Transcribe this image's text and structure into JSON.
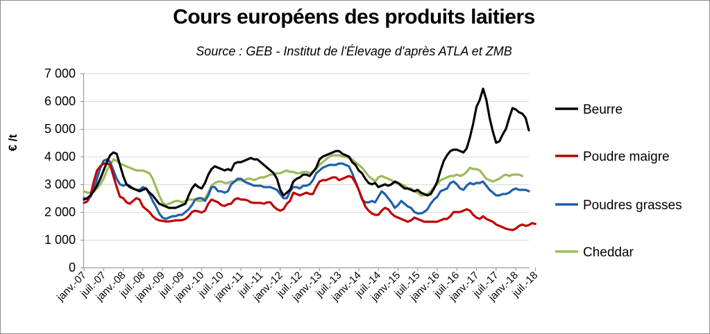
{
  "chart_data": {
    "type": "line",
    "title": "Cours européens des produits laitiers",
    "subtitle": "Source : GEB - Institut de l'Élevage d'après ATLA et ZMB",
    "xlabel": "",
    "ylabel": "€ /t",
    "ylim": [
      0,
      7000
    ],
    "yticks": [
      0,
      1000,
      2000,
      3000,
      4000,
      5000,
      6000,
      7000
    ],
    "ytick_labels": [
      "0",
      "1 000",
      "2 000",
      "3 000",
      "4 000",
      "5 000",
      "6 000",
      "7 000"
    ],
    "x_unit": "month",
    "x_start": "2007-01",
    "x_ticks": [
      "janv.-07",
      "juil.-07",
      "janv.-08",
      "juil.-08",
      "janv.-09",
      "juil.-09",
      "janv.-10",
      "juil.-10",
      "janv.-11",
      "juil.-11",
      "janv.-12",
      "juil.-12",
      "janv.-13",
      "juil.-13",
      "janv.-14",
      "juil.-14",
      "janv.-15",
      "juil.-15",
      "janv.-16",
      "juil.-16",
      "janv.-17",
      "juil.-17",
      "janv.-18",
      "juil.-18"
    ],
    "grid": "horizontal",
    "legend_position": "right",
    "series": [
      {
        "name": "Beurre",
        "color": "#000000",
        "values": [
          2450,
          2500,
          2600,
          2750,
          2950,
          3200,
          3500,
          3800,
          4050,
          4150,
          4100,
          3700,
          3300,
          3000,
          2900,
          2850,
          2800,
          2750,
          2800,
          2850,
          2700,
          2600,
          2450,
          2300,
          2250,
          2200,
          2150,
          2150,
          2150,
          2200,
          2250,
          2300,
          2600,
          2850,
          3000,
          2900,
          2850,
          3050,
          3350,
          3550,
          3650,
          3600,
          3550,
          3500,
          3550,
          3500,
          3750,
          3800,
          3800,
          3850,
          3900,
          3950,
          3900,
          3900,
          3800,
          3700,
          3600,
          3500,
          3400,
          3200,
          2800,
          2600,
          2700,
          2800,
          3100,
          3200,
          3250,
          3350,
          3350,
          3300,
          3450,
          3600,
          3900,
          4000,
          4050,
          4100,
          4150,
          4200,
          4200,
          4100,
          4050,
          4000,
          3800,
          3700,
          3500,
          3400,
          3200,
          3050,
          3000,
          3050,
          2900,
          2950,
          3000,
          2950,
          3000,
          3100,
          3050,
          2950,
          2850,
          2850,
          2800,
          2750,
          2800,
          2700,
          2650,
          2600,
          2650,
          2850,
          3100,
          3500,
          3850,
          4050,
          4200,
          4250,
          4250,
          4200,
          4150,
          4300,
          4700,
          5200,
          5800,
          6050,
          6450,
          6050,
          5400,
          4900,
          4500,
          4550,
          4800,
          5000,
          5400,
          5750,
          5700,
          5600,
          5550,
          5400,
          4950
        ]
      },
      {
        "name": "Poudre maigre",
        "color": "#c00000",
        "values": [
          2330,
          2380,
          2600,
          3100,
          3500,
          3650,
          3750,
          3750,
          3700,
          3300,
          2900,
          2550,
          2500,
          2350,
          2300,
          2400,
          2500,
          2450,
          2200,
          2100,
          2000,
          1850,
          1750,
          1700,
          1680,
          1660,
          1660,
          1680,
          1700,
          1700,
          1710,
          1750,
          1850,
          2000,
          2050,
          2020,
          1980,
          2050,
          2300,
          2450,
          2400,
          2350,
          2250,
          2220,
          2280,
          2300,
          2450,
          2500,
          2450,
          2450,
          2420,
          2350,
          2330,
          2330,
          2330,
          2300,
          2350,
          2350,
          2200,
          2100,
          2050,
          2100,
          2300,
          2400,
          2700,
          2650,
          2600,
          2650,
          2700,
          2650,
          2650,
          2900,
          3100,
          3150,
          3150,
          3200,
          3250,
          3250,
          3150,
          3200,
          3250,
          3300,
          3250,
          3050,
          2800,
          2500,
          2200,
          2050,
          1950,
          1900,
          1900,
          2050,
          2150,
          2100,
          1950,
          1850,
          1800,
          1750,
          1700,
          1650,
          1700,
          1800,
          1750,
          1700,
          1650,
          1650,
          1650,
          1650,
          1650,
          1700,
          1750,
          1750,
          1850,
          2000,
          2000,
          2000,
          2050,
          2100,
          2050,
          1900,
          1800,
          1750,
          1850,
          1750,
          1700,
          1650,
          1550,
          1500,
          1450,
          1400,
          1370,
          1350,
          1400,
          1500,
          1550,
          1500,
          1530,
          1600,
          1570
        ]
      },
      {
        "name": "Poudres grasses",
        "color": "#1f5fa8",
        "values": [
          2500,
          2480,
          2550,
          2800,
          3200,
          3600,
          3850,
          3900,
          3800,
          3500,
          3200,
          3000,
          2950,
          3000,
          2950,
          2850,
          2800,
          2800,
          2900,
          2850,
          2650,
          2400,
          2200,
          1950,
          1800,
          1750,
          1800,
          1850,
          1850,
          1900,
          1900,
          2000,
          2100,
          2250,
          2450,
          2500,
          2500,
          2400,
          2600,
          2900,
          2900,
          2750,
          2750,
          2700,
          2750,
          3000,
          3100,
          3200,
          3200,
          3100,
          3050,
          3000,
          2950,
          2950,
          2950,
          2900,
          2900,
          2900,
          2850,
          2800,
          2650,
          2500,
          2500,
          2750,
          2900,
          2900,
          2850,
          2950,
          2950,
          3000,
          3150,
          3400,
          3500,
          3600,
          3650,
          3700,
          3700,
          3700,
          3750,
          3750,
          3700,
          3650,
          3400,
          3100,
          2800,
          2450,
          2350,
          2350,
          2400,
          2350,
          2550,
          2750,
          2650,
          2500,
          2350,
          2150,
          2250,
          2400,
          2300,
          2200,
          2150,
          2000,
          1950,
          1950,
          2000,
          2100,
          2300,
          2450,
          2550,
          2750,
          2800,
          2850,
          3050,
          3100,
          3000,
          2850,
          2800,
          2950,
          3050,
          3000,
          3050,
          3050,
          3100,
          2950,
          2800,
          2700,
          2600,
          2600,
          2650,
          2650,
          2700,
          2800,
          2850,
          2800,
          2800,
          2800,
          2750
        ]
      },
      {
        "name": "Cheddar",
        "color": "#9bbb59",
        "values": [
          2750,
          2700,
          2700,
          2750,
          2850,
          3000,
          3200,
          3500,
          3700,
          3900,
          3850,
          3750,
          3700,
          3650,
          3600,
          3550,
          3500,
          3500,
          3500,
          3450,
          3400,
          3200,
          2900,
          2600,
          2350,
          2250,
          2300,
          2350,
          2400,
          2400,
          2350,
          2400,
          2450,
          2450,
          2450,
          2400,
          2400,
          2500,
          2700,
          2950,
          3050,
          3100,
          3100,
          3050,
          3050,
          3100,
          3100,
          3150,
          3150,
          3150,
          3200,
          3200,
          3150,
          3200,
          3250,
          3250,
          3300,
          3350,
          3350,
          3400,
          3400,
          3450,
          3500,
          3450,
          3450,
          3400,
          3400,
          3450,
          3450,
          3400,
          3450,
          3550,
          3700,
          3800,
          3900,
          4000,
          4050,
          4050,
          4050,
          4000,
          4000,
          3950,
          3900,
          3800,
          3700,
          3600,
          3450,
          3300,
          3200,
          3100,
          3250,
          3300,
          3250,
          3200,
          3150,
          3050,
          3050,
          3000,
          2950,
          2850,
          2850,
          2750,
          2700,
          2600,
          2600,
          2650,
          2750,
          2900,
          3000,
          3150,
          3200,
          3250,
          3300,
          3300,
          3350,
          3300,
          3350,
          3450,
          3600,
          3550,
          3550,
          3500,
          3350,
          3200,
          3150,
          3100,
          3150,
          3200,
          3300,
          3350,
          3300,
          3350,
          3350,
          3350,
          3300
        ]
      }
    ]
  }
}
